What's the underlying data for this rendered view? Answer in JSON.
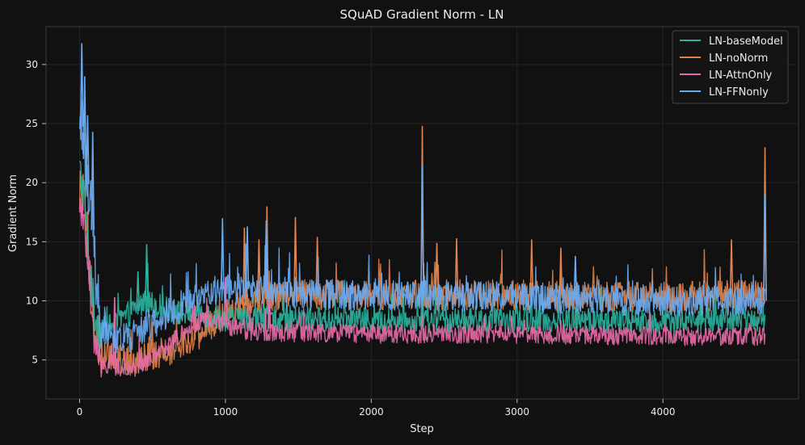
{
  "chart_data": {
    "type": "line",
    "title": "SQuAD Gradient Norm - LN",
    "xlabel": "Step",
    "ylabel": "Gradient Norm",
    "xlim": [
      -230,
      4930
    ],
    "ylim": [
      1.7,
      33.2
    ],
    "xticks": [
      0,
      1000,
      2000,
      3000,
      4000
    ],
    "yticks": [
      5,
      10,
      15,
      20,
      25,
      30
    ],
    "grid": true,
    "legend": "top-right",
    "series": [
      {
        "name": "LN-baseModel",
        "color": "#2bb3a0",
        "anchors": [
          [
            0,
            21
          ],
          [
            30,
            19
          ],
          [
            60,
            14
          ],
          [
            100,
            9
          ],
          [
            150,
            7.5
          ],
          [
            250,
            8
          ],
          [
            350,
            9
          ],
          [
            450,
            10
          ],
          [
            550,
            9.5
          ],
          [
            650,
            9
          ],
          [
            800,
            9
          ],
          [
            1000,
            8.5
          ],
          [
            1500,
            8.5
          ],
          [
            2000,
            8.3
          ],
          [
            3000,
            8.3
          ],
          [
            4000,
            8.3
          ],
          [
            4700,
            8.5
          ]
        ],
        "noise": 1.1,
        "spikes": [
          [
            460,
            14.8
          ],
          [
            400,
            12.5
          ],
          [
            2350,
            11.5
          ]
        ]
      },
      {
        "name": "LN-noNorm",
        "color": "#e0834c",
        "anchors": [
          [
            0,
            20
          ],
          [
            30,
            18
          ],
          [
            60,
            14
          ],
          [
            100,
            8
          ],
          [
            150,
            5.5
          ],
          [
            250,
            5
          ],
          [
            350,
            5
          ],
          [
            500,
            5.5
          ],
          [
            600,
            5.5
          ],
          [
            700,
            6.5
          ],
          [
            800,
            7
          ],
          [
            1000,
            9
          ],
          [
            1200,
            10
          ],
          [
            1500,
            10.5
          ],
          [
            2000,
            10.5
          ],
          [
            3000,
            10.5
          ],
          [
            4000,
            10.3
          ],
          [
            4700,
            10.5
          ]
        ],
        "noise": 1.3,
        "spikes": [
          [
            1130,
            16.2
          ],
          [
            1230,
            15.2
          ],
          [
            1285,
            18
          ],
          [
            1480,
            17.1
          ],
          [
            1630,
            15.4
          ],
          [
            2350,
            24.8
          ],
          [
            2450,
            14.9
          ],
          [
            2585,
            15.3
          ],
          [
            3100,
            15.2
          ],
          [
            3300,
            14.5
          ],
          [
            4470,
            15.2
          ],
          [
            4700,
            23
          ]
        ]
      },
      {
        "name": "LN-AttnOnly",
        "color": "#e86aa8",
        "anchors": [
          [
            0,
            18
          ],
          [
            30,
            17
          ],
          [
            60,
            13
          ],
          [
            100,
            6
          ],
          [
            150,
            4.8
          ],
          [
            250,
            4.5
          ],
          [
            350,
            4.2
          ],
          [
            450,
            4.8
          ],
          [
            600,
            6
          ],
          [
            750,
            8
          ],
          [
            900,
            8.5
          ],
          [
            1100,
            7.5
          ],
          [
            1500,
            7.3
          ],
          [
            2000,
            7.2
          ],
          [
            3000,
            7.2
          ],
          [
            4000,
            7.0
          ],
          [
            4700,
            7.0
          ]
        ],
        "noise": 0.8,
        "spikes": [
          [
            1000,
            12
          ],
          [
            1300,
            11
          ],
          [
            240,
            10.3
          ]
        ]
      },
      {
        "name": "LN-FFNonly",
        "color": "#6aaaf0",
        "anchors": [
          [
            0,
            24
          ],
          [
            20,
            25
          ],
          [
            40,
            21
          ],
          [
            80,
            18
          ],
          [
            110,
            12
          ],
          [
            150,
            8
          ],
          [
            250,
            6.5
          ],
          [
            350,
            7
          ],
          [
            450,
            7.5
          ],
          [
            550,
            8.5
          ],
          [
            700,
            9.5
          ],
          [
            900,
            11
          ],
          [
            1200,
            11
          ],
          [
            1500,
            10.5
          ],
          [
            2000,
            10.5
          ],
          [
            3000,
            10.3
          ],
          [
            4000,
            10
          ],
          [
            4700,
            10
          ]
        ],
        "noise": 1.3,
        "spikes": [
          [
            15,
            31.8
          ],
          [
            35,
            29
          ],
          [
            55,
            25.7
          ],
          [
            90,
            24.3
          ],
          [
            980,
            17
          ],
          [
            1150,
            16.3
          ],
          [
            1280,
            16.8
          ],
          [
            2350,
            21.5
          ],
          [
            3400,
            13.8
          ],
          [
            4700,
            19
          ]
        ]
      }
    ]
  }
}
